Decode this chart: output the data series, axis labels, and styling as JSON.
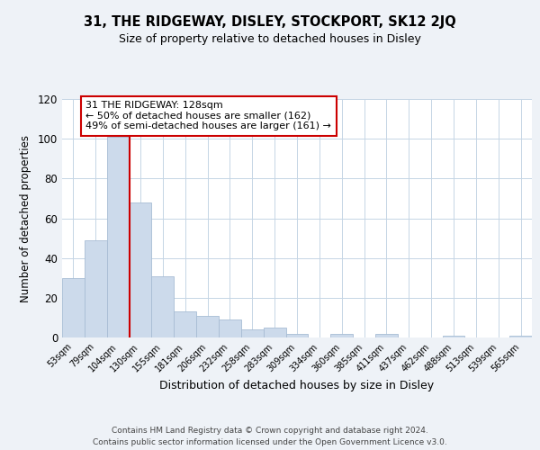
{
  "title1": "31, THE RIDGEWAY, DISLEY, STOCKPORT, SK12 2JQ",
  "title2": "Size of property relative to detached houses in Disley",
  "xlabel": "Distribution of detached houses by size in Disley",
  "ylabel": "Number of detached properties",
  "bar_labels": [
    "53sqm",
    "79sqm",
    "104sqm",
    "130sqm",
    "155sqm",
    "181sqm",
    "206sqm",
    "232sqm",
    "258sqm",
    "283sqm",
    "309sqm",
    "334sqm",
    "360sqm",
    "385sqm",
    "411sqm",
    "437sqm",
    "462sqm",
    "488sqm",
    "513sqm",
    "539sqm",
    "565sqm"
  ],
  "bar_values": [
    30,
    49,
    101,
    68,
    31,
    13,
    11,
    9,
    4,
    5,
    2,
    0,
    2,
    0,
    2,
    0,
    0,
    1,
    0,
    0,
    1
  ],
  "bar_color": "#ccdaeb",
  "bar_edge_color": "#a8bdd4",
  "vline_color": "#cc0000",
  "annotation_line1": "31 THE RIDGEWAY: 128sqm",
  "annotation_line2": "← 50% of detached houses are smaller (162)",
  "annotation_line3": "49% of semi-detached houses are larger (161) →",
  "annotation_box_color": "#ffffff",
  "annotation_box_edge": "#cc0000",
  "ylim": [
    0,
    120
  ],
  "yticks": [
    0,
    20,
    40,
    60,
    80,
    100,
    120
  ],
  "footnote1": "Contains HM Land Registry data © Crown copyright and database right 2024.",
  "footnote2": "Contains public sector information licensed under the Open Government Licence v3.0.",
  "bg_color": "#eef2f7",
  "plot_bg_color": "#ffffff",
  "grid_color": "#c5d5e5",
  "title1_fontsize": 10.5,
  "title2_fontsize": 9,
  "ylabel_fontsize": 8.5,
  "xlabel_fontsize": 9
}
